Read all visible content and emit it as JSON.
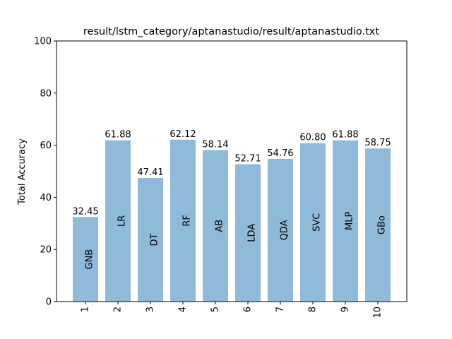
{
  "chart_data": {
    "type": "bar",
    "title": "result/lstm_category/aptanastudio/result/aptanastudio.txt",
    "xlabel": "",
    "ylabel": "Total Accuracy",
    "ylim": [
      0,
      100
    ],
    "yticks": [
      0,
      20,
      40,
      60,
      80,
      100
    ],
    "grid": false,
    "categories": [
      "1",
      "2",
      "3",
      "4",
      "5",
      "6",
      "7",
      "8",
      "9",
      "10"
    ],
    "bar_labels": [
      "GNB",
      "LR",
      "DT",
      "RF",
      "AB",
      "LDA",
      "QDA",
      "SVC",
      "MLP",
      "GBo"
    ],
    "values": [
      32.45,
      61.88,
      47.41,
      62.12,
      58.14,
      52.71,
      54.76,
      60.8,
      61.88,
      58.75
    ],
    "value_labels": [
      "32.45",
      "61.88",
      "47.41",
      "62.12",
      "58.14",
      "52.71",
      "54.76",
      "60.80",
      "61.88",
      "58.75"
    ],
    "bar_color": "#8fbad9"
  }
}
